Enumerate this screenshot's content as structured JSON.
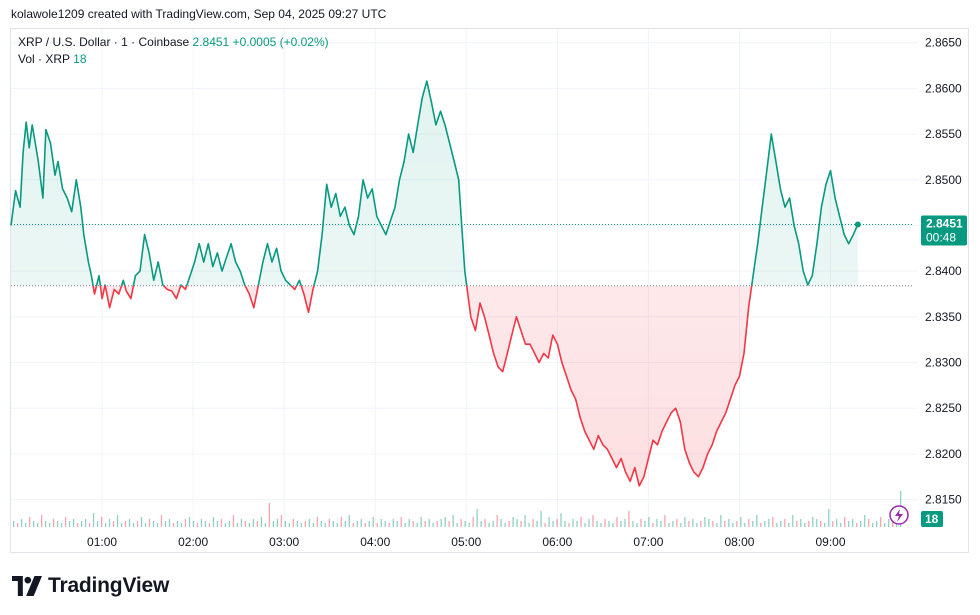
{
  "header": {
    "credit": "kolawole1209 created with TradingView.com, Sep 04, 2025 09:27 UTC"
  },
  "legend": {
    "symbol": "XRP / U.S. Dollar · 1 · Coinbase",
    "last": "2.8451",
    "change": "+0.0005 (+0.02%)",
    "vol_label": "Vol · XRP",
    "vol_value": "18"
  },
  "price_tag": {
    "value": "2.8451",
    "countdown": "00:48"
  },
  "volume_tag": "18",
  "brand": "TradingView",
  "colors": {
    "up": "#089981",
    "down": "#f23645",
    "grid": "#f0f3fa",
    "text": "#131722"
  },
  "chart_data": {
    "type": "line",
    "title": "XRP / U.S. Dollar · 1 · Coinbase",
    "baseline": 2.8384,
    "y_ticks": [
      "2.8650",
      "2.8600",
      "2.8550",
      "2.8500",
      "2.8450",
      "2.8400",
      "2.8350",
      "2.8300",
      "2.8250",
      "2.8200",
      "2.8150"
    ],
    "x_ticks": [
      "01:00",
      "02:00",
      "03:00",
      "04:00",
      "05:00",
      "06:00",
      "07:00",
      "08:00",
      "09:00"
    ],
    "ylim": [
      2.812,
      2.8665
    ],
    "xlim_minutes_from_midnight": [
      0,
      595
    ],
    "series": [
      {
        "points": [
          [
            "00:00",
            2.845
          ],
          [
            "00:03",
            2.8488
          ],
          [
            "00:06",
            2.847
          ],
          [
            "00:08",
            2.853
          ],
          [
            "00:10",
            2.8563
          ],
          [
            "00:12",
            2.8535
          ],
          [
            "00:14",
            2.856
          ],
          [
            "00:16",
            2.854
          ],
          [
            "00:18",
            2.852
          ],
          [
            "00:21",
            2.848
          ],
          [
            "00:23",
            2.8555
          ],
          [
            "00:26",
            2.854
          ],
          [
            "00:29",
            2.8505
          ],
          [
            "00:31",
            2.852
          ],
          [
            "00:34",
            2.849
          ],
          [
            "00:37",
            2.848
          ],
          [
            "00:40",
            2.8465
          ],
          [
            "00:43",
            2.85
          ],
          [
            "00:46",
            2.847
          ],
          [
            "00:48",
            2.844
          ],
          [
            "00:51",
            2.841
          ],
          [
            "00:53",
            2.8395
          ],
          [
            "00:55",
            2.8375
          ],
          [
            "00:58",
            2.8395
          ],
          [
            "01:00",
            2.837
          ],
          [
            "01:02",
            2.8385
          ],
          [
            "01:05",
            2.836
          ],
          [
            "01:08",
            2.838
          ],
          [
            "01:11",
            2.8375
          ],
          [
            "01:14",
            2.839
          ],
          [
            "01:16",
            2.8378
          ],
          [
            "01:19",
            2.837
          ],
          [
            "01:22",
            2.8395
          ],
          [
            "01:25",
            2.84
          ],
          [
            "01:28",
            2.844
          ],
          [
            "01:31",
            2.842
          ],
          [
            "01:34",
            2.839
          ],
          [
            "01:37",
            2.841
          ],
          [
            "01:40",
            2.8385
          ],
          [
            "01:43",
            2.838
          ],
          [
            "01:46",
            2.8378
          ],
          [
            "01:49",
            2.837
          ],
          [
            "01:52",
            2.8385
          ],
          [
            "01:55",
            2.838
          ],
          [
            "01:58",
            2.8395
          ],
          [
            "02:01",
            2.841
          ],
          [
            "02:04",
            2.843
          ],
          [
            "02:07",
            2.841
          ],
          [
            "02:10",
            2.843
          ],
          [
            "02:13",
            2.8405
          ],
          [
            "02:16",
            2.842
          ],
          [
            "02:19",
            2.84
          ],
          [
            "02:22",
            2.8415
          ],
          [
            "02:25",
            2.843
          ],
          [
            "02:28",
            2.841
          ],
          [
            "02:31",
            2.84
          ],
          [
            "02:34",
            2.8385
          ],
          [
            "02:37",
            2.8375
          ],
          [
            "02:40",
            2.836
          ],
          [
            "02:43",
            2.8385
          ],
          [
            "02:46",
            2.841
          ],
          [
            "02:49",
            2.843
          ],
          [
            "02:52",
            2.841
          ],
          [
            "02:55",
            2.8425
          ],
          [
            "02:58",
            2.84
          ],
          [
            "03:01",
            2.839
          ],
          [
            "03:04",
            2.8385
          ],
          [
            "03:07",
            2.838
          ],
          [
            "03:10",
            2.839
          ],
          [
            "03:13",
            2.8375
          ],
          [
            "03:16",
            2.8355
          ],
          [
            "03:19",
            2.838
          ],
          [
            "03:22",
            2.84
          ],
          [
            "03:25",
            2.844
          ],
          [
            "03:28",
            2.8495
          ],
          [
            "03:31",
            2.847
          ],
          [
            "03:34",
            2.8485
          ],
          [
            "03:37",
            2.846
          ],
          [
            "03:40",
            2.847
          ],
          [
            "03:43",
            2.845
          ],
          [
            "03:46",
            2.844
          ],
          [
            "03:49",
            2.846
          ],
          [
            "03:52",
            2.85
          ],
          [
            "03:55",
            2.848
          ],
          [
            "03:58",
            2.849
          ],
          [
            "04:01",
            2.846
          ],
          [
            "04:04",
            2.845
          ],
          [
            "04:07",
            2.844
          ],
          [
            "04:10",
            2.8455
          ],
          [
            "04:13",
            2.847
          ],
          [
            "04:16",
            2.85
          ],
          [
            "04:19",
            2.852
          ],
          [
            "04:22",
            2.855
          ],
          [
            "04:25",
            2.853
          ],
          [
            "04:28",
            2.856
          ],
          [
            "04:31",
            2.859
          ],
          [
            "04:34",
            2.8608
          ],
          [
            "04:37",
            2.8585
          ],
          [
            "04:40",
            2.856
          ],
          [
            "04:43",
            2.8575
          ],
          [
            "04:46",
            2.856
          ],
          [
            "04:49",
            2.854
          ],
          [
            "04:52",
            2.852
          ],
          [
            "04:55",
            2.85
          ],
          [
            "04:57",
            2.845
          ],
          [
            "04:59",
            2.84
          ],
          [
            "05:01",
            2.8375
          ],
          [
            "05:03",
            2.835
          ],
          [
            "05:06",
            2.8335
          ],
          [
            "05:09",
            2.8365
          ],
          [
            "05:12",
            2.835
          ],
          [
            "05:15",
            2.833
          ],
          [
            "05:18",
            2.831
          ],
          [
            "05:21",
            2.8295
          ],
          [
            "05:24",
            2.829
          ],
          [
            "05:27",
            2.831
          ],
          [
            "05:30",
            2.833
          ],
          [
            "05:33",
            2.835
          ],
          [
            "05:36",
            2.8335
          ],
          [
            "05:39",
            2.832
          ],
          [
            "05:42",
            2.832
          ],
          [
            "05:45",
            2.831
          ],
          [
            "05:48",
            2.83
          ],
          [
            "05:51",
            2.831
          ],
          [
            "05:54",
            2.8305
          ],
          [
            "05:57",
            2.833
          ],
          [
            "06:00",
            2.832
          ],
          [
            "06:03",
            2.83
          ],
          [
            "06:06",
            2.8285
          ],
          [
            "06:09",
            2.827
          ],
          [
            "06:12",
            2.826
          ],
          [
            "06:15",
            2.824
          ],
          [
            "06:18",
            2.8225
          ],
          [
            "06:21",
            2.8215
          ],
          [
            "06:24",
            2.8205
          ],
          [
            "06:27",
            2.822
          ],
          [
            "06:30",
            2.821
          ],
          [
            "06:33",
            2.8205
          ],
          [
            "06:36",
            2.8195
          ],
          [
            "06:39",
            2.8185
          ],
          [
            "06:42",
            2.8195
          ],
          [
            "06:45",
            2.818
          ],
          [
            "06:48",
            2.817
          ],
          [
            "06:51",
            2.8185
          ],
          [
            "06:54",
            2.8165
          ],
          [
            "06:57",
            2.8175
          ],
          [
            "07:00",
            2.8195
          ],
          [
            "07:03",
            2.8215
          ],
          [
            "07:06",
            2.821
          ],
          [
            "07:09",
            2.8225
          ],
          [
            "07:12",
            2.8235
          ],
          [
            "07:15",
            2.8245
          ],
          [
            "07:18",
            2.825
          ],
          [
            "07:21",
            2.8235
          ],
          [
            "07:24",
            2.8205
          ],
          [
            "07:27",
            2.819
          ],
          [
            "07:30",
            2.818
          ],
          [
            "07:33",
            2.8175
          ],
          [
            "07:36",
            2.8185
          ],
          [
            "07:39",
            2.82
          ],
          [
            "07:42",
            2.821
          ],
          [
            "07:45",
            2.8225
          ],
          [
            "07:48",
            2.8235
          ],
          [
            "07:51",
            2.8245
          ],
          [
            "07:54",
            2.826
          ],
          [
            "07:57",
            2.8275
          ],
          [
            "08:00",
            2.8285
          ],
          [
            "08:03",
            2.831
          ],
          [
            "08:06",
            2.836
          ],
          [
            "08:09",
            2.8395
          ],
          [
            "08:12",
            2.843
          ],
          [
            "08:15",
            2.847
          ],
          [
            "08:18",
            2.851
          ],
          [
            "08:21",
            2.855
          ],
          [
            "08:24",
            2.852
          ],
          [
            "08:27",
            2.849
          ],
          [
            "08:30",
            2.847
          ],
          [
            "08:33",
            2.848
          ],
          [
            "08:36",
            2.845
          ],
          [
            "08:39",
            2.843
          ],
          [
            "08:42",
            2.84
          ],
          [
            "08:45",
            2.8385
          ],
          [
            "08:48",
            2.8395
          ],
          [
            "08:51",
            2.843
          ],
          [
            "08:54",
            2.847
          ],
          [
            "08:57",
            2.8495
          ],
          [
            "09:00",
            2.851
          ],
          [
            "09:03",
            2.848
          ],
          [
            "09:06",
            2.846
          ],
          [
            "09:09",
            2.844
          ],
          [
            "09:12",
            2.843
          ],
          [
            "09:15",
            2.844
          ],
          [
            "09:18",
            2.8451
          ]
        ]
      }
    ],
    "volume": [
      3,
      2,
      4,
      2,
      5,
      3,
      2,
      6,
      3,
      2,
      4,
      3,
      2,
      5,
      3,
      4,
      2,
      3,
      4,
      2,
      7,
      3,
      5,
      2,
      4,
      3,
      6,
      2,
      3,
      4,
      2,
      3,
      5,
      2,
      4,
      3,
      2,
      6,
      3,
      4,
      2,
      3,
      2,
      4,
      5,
      3,
      2,
      4,
      3,
      2,
      5,
      3,
      4,
      2,
      3,
      6,
      2,
      4,
      3,
      2,
      4,
      3,
      5,
      2,
      12,
      3,
      4,
      6,
      3,
      2,
      4,
      3,
      2,
      3,
      4,
      2,
      5,
      3,
      2,
      4,
      3,
      2,
      5,
      3,
      6,
      2,
      3,
      4,
      2,
      3,
      5,
      2,
      4,
      3,
      2,
      4,
      3,
      5,
      2,
      4,
      3,
      2,
      5,
      3,
      4,
      2,
      3,
      4,
      5,
      3,
      6,
      2,
      4,
      3,
      2,
      5,
      9,
      3,
      4,
      2,
      3,
      6,
      4,
      2,
      3,
      5,
      4,
      3,
      6,
      2,
      4,
      3,
      8,
      2,
      5,
      3,
      4,
      7,
      3,
      2,
      4,
      3,
      5,
      2,
      4,
      6,
      3,
      2,
      4,
      3,
      2,
      5,
      3,
      4,
      8,
      3,
      2,
      4,
      3,
      5,
      2,
      4,
      3,
      6,
      2,
      3,
      4,
      2,
      5,
      3,
      4,
      2,
      3,
      5,
      4,
      3,
      2,
      6,
      3,
      4,
      2,
      3,
      5,
      2,
      4,
      3,
      6,
      2,
      3,
      4,
      5,
      2,
      3,
      4,
      2,
      6,
      3,
      4,
      2,
      3,
      5,
      4,
      3,
      2,
      9,
      3,
      4,
      2,
      5,
      3,
      4,
      2,
      3,
      6,
      4,
      2,
      3,
      5,
      2,
      4,
      3,
      2,
      18
    ]
  }
}
